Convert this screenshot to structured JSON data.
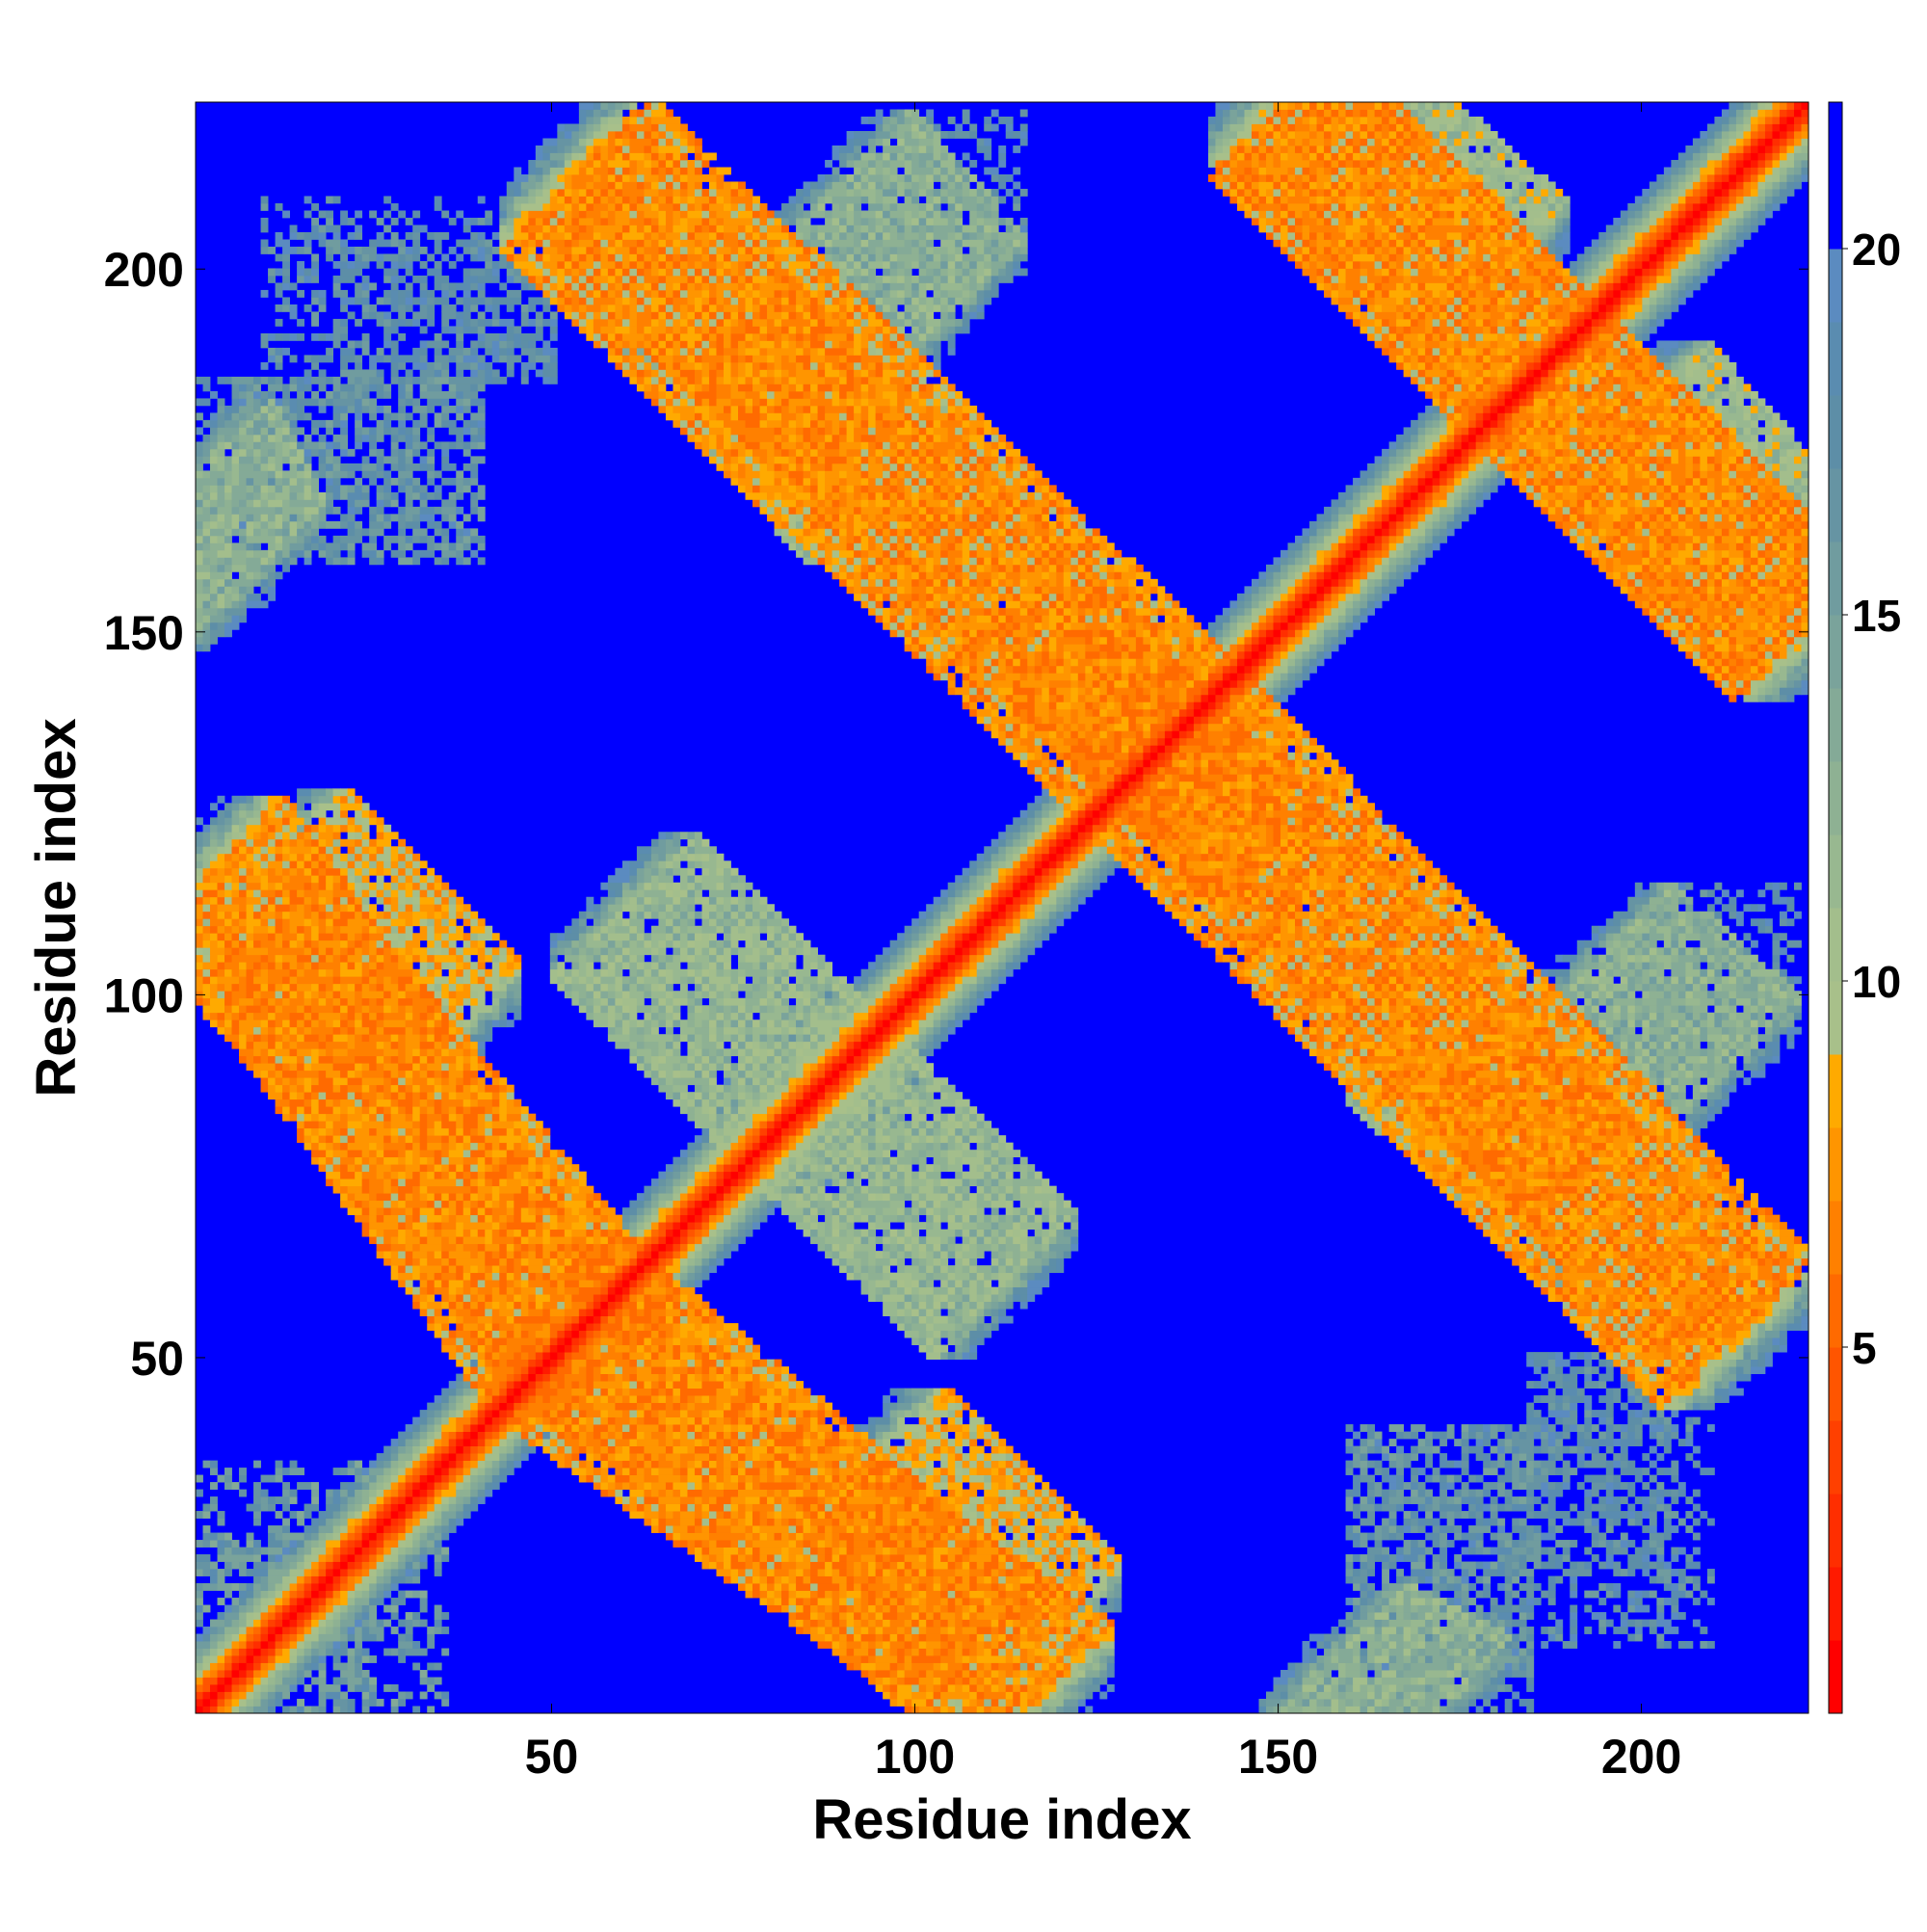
{
  "chart_data": {
    "type": "heatmap",
    "description_kind": "residue contact / distance map",
    "xlabel": "Residue index",
    "ylabel": "Residue index",
    "xlim": [
      1,
      223
    ],
    "ylim": [
      1,
      223
    ],
    "x_ticks": [
      50,
      100,
      150,
      200
    ],
    "y_ticks": [
      50,
      100,
      150,
      200
    ],
    "n_residues": 223,
    "colorbar": {
      "range": [
        0,
        22
      ],
      "ticks": [
        5,
        10,
        15,
        20
      ],
      "levels": [
        {
          "from": 0,
          "to": 1,
          "color": "#ff0000"
        },
        {
          "from": 1,
          "to": 2,
          "color": "#ff1a00"
        },
        {
          "from": 2,
          "to": 3,
          "color": "#ff2e00"
        },
        {
          "from": 3,
          "to": 4,
          "color": "#ff4000"
        },
        {
          "from": 4,
          "to": 5,
          "color": "#ff5500"
        },
        {
          "from": 5,
          "to": 6,
          "color": "#ff6a00"
        },
        {
          "from": 6,
          "to": 7,
          "color": "#ff8000"
        },
        {
          "from": 7,
          "to": 8,
          "color": "#ff9500"
        },
        {
          "from": 8,
          "to": 9,
          "color": "#ffaa00"
        },
        {
          "from": 9,
          "to": 10,
          "color": "#a8c08a"
        },
        {
          "from": 10,
          "to": 11,
          "color": "#a3be8c"
        },
        {
          "from": 11,
          "to": 12,
          "color": "#98b890"
        },
        {
          "from": 12,
          "to": 13,
          "color": "#8eb193"
        },
        {
          "from": 13,
          "to": 14,
          "color": "#84aa97"
        },
        {
          "from": 14,
          "to": 15,
          "color": "#7aa39b"
        },
        {
          "from": 15,
          "to": 16,
          "color": "#709c9f"
        },
        {
          "from": 16,
          "to": 17,
          "color": "#6694a3"
        },
        {
          "from": 17,
          "to": 18,
          "color": "#5d8ea7"
        },
        {
          "from": 18,
          "to": 19,
          "color": "#5a8cb0"
        },
        {
          "from": 19,
          "to": 20,
          "color": "#5b8bc0"
        },
        {
          "from": 20,
          "to": 22,
          "color": "#0000ff"
        }
      ]
    },
    "background_value": 22,
    "features": [
      {
        "kind": "diagonal_band",
        "value_on_diagonal": 0,
        "half_width": 10
      },
      {
        "kind": "antiparallel_strand",
        "x_range": [
          8,
          58
        ],
        "y_range": [
          110,
          50
        ],
        "core_value": 7,
        "half_width": 5
      },
      {
        "kind": "antiparallel_strand",
        "x_range": [
          52,
          118
        ],
        "y_range": [
          50,
          4
        ],
        "core_value": 7,
        "half_width": 5
      },
      {
        "kind": "antiparallel_strand",
        "x_range": [
          55,
          142
        ],
        "y_range": [
          215,
          130
        ],
        "core_value": 7,
        "half_width": 5
      },
      {
        "kind": "antiparallel_strand",
        "x_range": [
          135,
          212
        ],
        "y_range": [
          130,
          52
        ],
        "core_value": 7,
        "half_width": 5
      },
      {
        "kind": "antiparallel_strand",
        "x_range": [
          150,
          222
        ],
        "y_range": [
          222,
          150
        ],
        "core_value": 7,
        "half_width": 5
      },
      {
        "kind": "antiparallel_strand",
        "x_range": [
          90,
          105
        ],
        "y_range": [
          212,
          195
        ],
        "core_value": 12,
        "half_width": 6
      },
      {
        "kind": "antiparallel_strand",
        "x_range": [
          60,
          90
        ],
        "y_range": [
          112,
          82
        ],
        "core_value": 11,
        "half_width": 6
      },
      {
        "kind": "antiparallel_strand",
        "x_range": [
          95,
          118
        ],
        "y_range": [
          35,
          12
        ],
        "core_value": 8,
        "half_width": 6
      },
      {
        "kind": "antiparallel_strand",
        "x_range": [
          158,
          172
        ],
        "y_range": [
          8,
          1
        ],
        "core_value": 12,
        "half_width": 6
      },
      {
        "kind": "antiparallel_strand",
        "x_range": [
          170,
          200
        ],
        "y_range": [
          95,
          68
        ],
        "core_value": 11,
        "half_width": 6
      },
      {
        "kind": "antiparallel_strand",
        "x_range": [
          200,
          222
        ],
        "y_range": [
          180,
          155
        ],
        "core_value": 10,
        "half_width": 6
      },
      {
        "kind": "diffuse_patch",
        "x_range": [
          1,
          40
        ],
        "y_range": [
          160,
          185
        ],
        "value": 17
      },
      {
        "kind": "diffuse_patch",
        "x_range": [
          20,
          50
        ],
        "y_range": [
          185,
          205
        ],
        "value": 18
      },
      {
        "kind": "diffuse_patch",
        "x_range": [
          160,
          185
        ],
        "y_range": [
          4,
          40
        ],
        "value": 17
      },
      {
        "kind": "diffuse_patch",
        "x_range": [
          185,
          210
        ],
        "y_range": [
          10,
          50
        ],
        "value": 18
      },
      {
        "kind": "diffuse_patch",
        "x_range": [
          1,
          25
        ],
        "y_range": [
          1,
          35
        ],
        "value": 16
      },
      {
        "kind": "diffuse_patch",
        "x_range": [
          205,
          222
        ],
        "y_range": [
          100,
          115
        ],
        "value": 18
      }
    ]
  }
}
